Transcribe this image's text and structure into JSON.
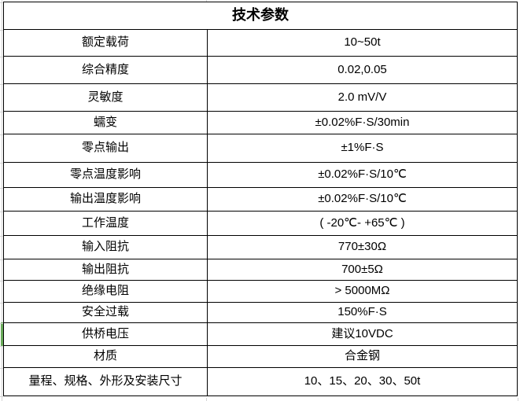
{
  "spec_table": {
    "title": "技术参数",
    "rows": [
      {
        "label": "额定载荷",
        "value": "10~50t"
      },
      {
        "label": "综合精度",
        "value": "0.02,0.05"
      },
      {
        "label": "灵敏度",
        "value": "2.0 mV/V"
      },
      {
        "label": "蠕变",
        "value": "±0.02%F·S/30min"
      },
      {
        "label": "零点输出",
        "value": "±1%F·S"
      },
      {
        "label": "零点温度影响",
        "value": "±0.02%F·S/10℃"
      },
      {
        "label": "输出温度影响",
        "value": "±0.02%F·S/10℃"
      },
      {
        "label": "工作温度",
        "value": "( -20℃- +65℃ )"
      },
      {
        "label": "输入阻抗",
        "value": "770±30Ω"
      },
      {
        "label": "输出阻抗",
        "value": "700±5Ω"
      },
      {
        "label": "绝缘电阻",
        "value": "> 5000MΩ"
      },
      {
        "label": "安全过载",
        "value": "150%F·S"
      },
      {
        "label": "供桥电压",
        "value": "建议10VDC"
      },
      {
        "label": "材质",
        "value": "合金钢"
      },
      {
        "label": "量程、规格、外形及安装尺寸",
        "value": "10、15、20、30、50t"
      }
    ],
    "border_color": "#000000",
    "text_color": "#000000"
  },
  "decorations": {
    "gridline_color": "#d4d4d4",
    "left_marker": {
      "row_label": "供桥电压",
      "color": "#69aa5a"
    }
  }
}
